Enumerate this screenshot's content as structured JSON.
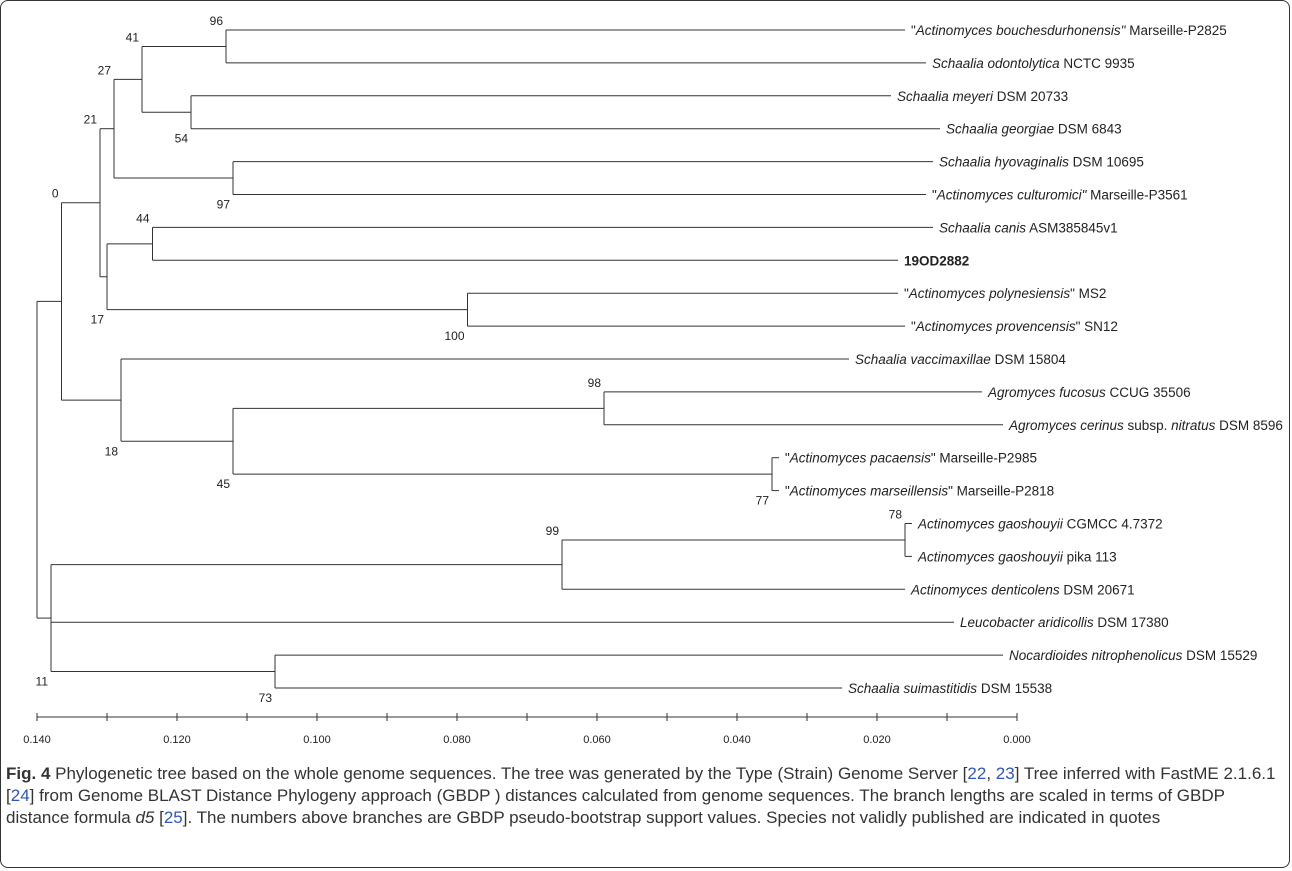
{
  "tree": {
    "taxa": [
      {
        "id": "t1",
        "pre": "\"",
        "italic": "Actinomyces bouchesdurhonensis\"",
        "post": " Marseille-P2825",
        "distance": 0.016
      },
      {
        "id": "t2",
        "pre": "",
        "italic": "Schaalia odontolytica",
        "post": " NCTC 9935",
        "distance": 0.013
      },
      {
        "id": "t3",
        "pre": "",
        "italic": "Schaalia meyeri",
        "post": " DSM 20733",
        "distance": 0.018
      },
      {
        "id": "t4",
        "pre": "",
        "italic": "Schaalia georgiae",
        "post": " DSM 6843",
        "distance": 0.011
      },
      {
        "id": "t5",
        "pre": "",
        "italic": "Schaalia hyovaginalis",
        "post": " DSM 10695",
        "distance": 0.012
      },
      {
        "id": "t6",
        "pre": "\"",
        "italic": "Actinomyces culturomici\"",
        "post": " Marseille-P3561",
        "distance": 0.013
      },
      {
        "id": "t7",
        "pre": "",
        "italic": "Schaalia canis",
        "post": " ASM385845v1",
        "distance": 0.012
      },
      {
        "id": "t8",
        "pre": "",
        "italic": "",
        "post": "19OD2882",
        "bold": true,
        "distance": 0.017
      },
      {
        "id": "t9",
        "pre": "\"",
        "italic": "Actinomyces polynesiensis",
        "post": "\" MS2",
        "distance": 0.017
      },
      {
        "id": "t10",
        "pre": "\"",
        "italic": "Actinomyces provencensis",
        "post": "\" SN12",
        "distance": 0.016
      },
      {
        "id": "t11",
        "pre": "",
        "italic": "Schaalia vaccimaxillae",
        "post": " DSM 15804",
        "distance": 0.024
      },
      {
        "id": "t12",
        "pre": "",
        "italic": "Agromyces fucosus",
        "post": " CCUG 35506",
        "distance": 0.005
      },
      {
        "id": "t13",
        "pre": "",
        "italic": "Agromyces cerinus",
        "post": " subsp. ",
        "italic2": "nitratus",
        "post2": " DSM 8596",
        "distance": 0.002
      },
      {
        "id": "t14",
        "pre": "\"",
        "italic": "Actinomyces pacaensis",
        "post": "\" Marseille-P2985",
        "distance": 0.034
      },
      {
        "id": "t15",
        "pre": "\"",
        "italic": "Actinomyces marseillensis",
        "post": "\" Marseille-P2818",
        "distance": 0.034
      },
      {
        "id": "t16",
        "pre": "",
        "italic": "Actinomyces gaoshouyii",
        "post": " CGMCC 4.7372",
        "distance": 0.015
      },
      {
        "id": "t17",
        "pre": "",
        "italic": "Actinomyces gaoshouyii",
        "post": " pika 113",
        "distance": 0.015
      },
      {
        "id": "t18",
        "pre": "",
        "italic": "Actinomyces denticolens",
        "post": " DSM 20671",
        "distance": 0.016
      },
      {
        "id": "t19",
        "pre": "",
        "italic": "Leucobacter aridicollis",
        "post": " DSM 17380",
        "distance": 0.009
      },
      {
        "id": "t20",
        "pre": "",
        "italic": "Nocardioides nitrophenolicus",
        "post": " DSM 15529",
        "distance": 0.002
      },
      {
        "id": "t21",
        "pre": "",
        "italic": "Schaalia suimastitidis",
        "post": " DSM 15538",
        "distance": 0.025
      }
    ],
    "nodes": [
      {
        "id": "n96",
        "support": "96",
        "distance": 0.113,
        "children": [
          "t1",
          "t2"
        ],
        "label_pos": "above"
      },
      {
        "id": "n54",
        "support": "54",
        "distance": 0.118,
        "children": [
          "t3",
          "t4"
        ],
        "label_pos": "below"
      },
      {
        "id": "n41",
        "support": "41",
        "distance": 0.125,
        "children": [
          "n96",
          "n54"
        ],
        "label_pos": "above"
      },
      {
        "id": "n97",
        "support": "97",
        "distance": 0.112,
        "children": [
          "t5",
          "t6"
        ],
        "label_pos": "below"
      },
      {
        "id": "n27",
        "support": "27",
        "distance": 0.129,
        "children": [
          "n41",
          "n97"
        ],
        "label_pos": "above"
      },
      {
        "id": "n44",
        "support": "44",
        "distance": 0.1235,
        "children": [
          "t7",
          "t8"
        ],
        "label_pos": "above"
      },
      {
        "id": "n100",
        "support": "100",
        "distance": 0.0785,
        "children": [
          "t9",
          "t10"
        ],
        "label_pos": "below"
      },
      {
        "id": "n17",
        "support": "17",
        "distance": 0.13,
        "children": [
          "n44",
          "n100"
        ],
        "label_pos": "below"
      },
      {
        "id": "n21",
        "support": "21",
        "distance": 0.131,
        "children": [
          "n27",
          "n17"
        ],
        "label_pos": "above"
      },
      {
        "id": "n98",
        "support": "98",
        "distance": 0.059,
        "children": [
          "t12",
          "t13"
        ],
        "label_pos": "above"
      },
      {
        "id": "n77",
        "support": "77",
        "distance": 0.035,
        "children": [
          "t14",
          "t15"
        ],
        "label_pos": "below"
      },
      {
        "id": "n45",
        "support": "45",
        "distance": 0.112,
        "children": [
          "n98",
          "n77"
        ],
        "label_pos": "below"
      },
      {
        "id": "n18",
        "support": "18",
        "distance": 0.128,
        "children": [
          "t11",
          "n45"
        ],
        "label_pos": "below"
      },
      {
        "id": "n0",
        "support": "0",
        "distance": 0.1365,
        "children": [
          "n21",
          "n18"
        ],
        "label_pos": "above"
      },
      {
        "id": "n78",
        "support": "78",
        "distance": 0.016,
        "children": [
          "t16",
          "t17"
        ],
        "label_pos": "above"
      },
      {
        "id": "n99",
        "support": "99",
        "distance": 0.065,
        "children": [
          "n78",
          "t18"
        ],
        "label_pos": "above"
      },
      {
        "id": "n73",
        "support": "73",
        "distance": 0.106,
        "children": [
          "t20",
          "t21"
        ],
        "label_pos": "below"
      },
      {
        "id": "n11",
        "support": "11",
        "distance": 0.138,
        "children": [
          "n99",
          "t19",
          "n73"
        ],
        "label_pos": "below"
      },
      {
        "id": "root",
        "support": "",
        "distance": 0.14,
        "children": [
          "n0",
          "n11"
        ],
        "label_pos": "none"
      }
    ]
  },
  "axis": {
    "ticks": [
      0.14,
      0.12,
      0.1,
      0.08,
      0.06,
      0.04,
      0.02,
      0.0
    ],
    "tick_labels": [
      "0.140",
      "0.120",
      "0.100",
      "0.080",
      "0.060",
      "0.040",
      "0.020",
      "0.000"
    ],
    "minor_step": 0.01,
    "domain": [
      0.14,
      0.0
    ]
  },
  "caption": {
    "fig_label": "Fig. 4",
    "text_a": " Phylogenetic tree based on the whole genome sequences. The tree was generated by the Type (Strain) Genome Server [",
    "ref_22": "22",
    "sep1": ", ",
    "ref_23": "23",
    "text_b": "] Tree inferred with FastME 2.1.6.1 [",
    "ref_24": "24",
    "text_c": "] from Genome BLAST Distance Phylogeny approach (GBDP ) distances calculated from genome sequences. The branch lengths are scaled in terms of GBDP distance formula ",
    "formula": "d5",
    "text_d": " [",
    "ref_25": "25",
    "text_e": "]. The numbers above branches are GBDP pseudo-bootstrap support values. Species not validly published are indicated in quotes"
  }
}
